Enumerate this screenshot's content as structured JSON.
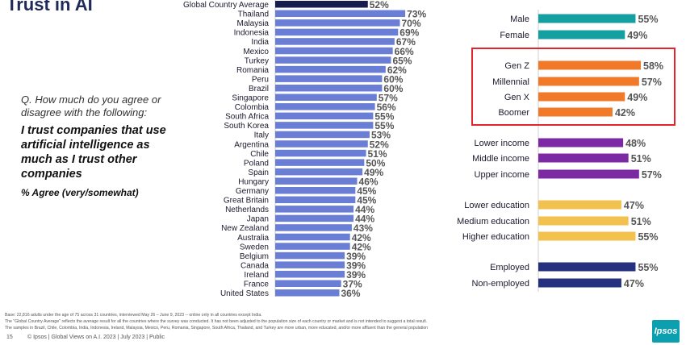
{
  "title": "Trust in AI",
  "question": "Q. How much do you agree or disagree with the following:",
  "statement": "I trust companies that use artificial intelligence as much as I trust other companies",
  "agree_label": "% Agree (very/somewhat)",
  "colors": {
    "country_bar": "#6b7ed6",
    "global_bar": "#161d4e",
    "gender": "#14a0a0",
    "generation": "#f07a2a",
    "income": "#7c2aa3",
    "education": "#f2c14e",
    "employment": "#25307e",
    "highlight_border": "#e0262c"
  },
  "chart_data": [
    {
      "type": "bar",
      "orientation": "horizontal",
      "categories": [
        "Global Country Average",
        "Thailand",
        "Malaysia",
        "Indonesia",
        "India",
        "Mexico",
        "Turkey",
        "Romania",
        "Peru",
        "Brazil",
        "Singapore",
        "Colombia",
        "South Africa",
        "South Korea",
        "Italy",
        "Argentina",
        "Chile",
        "Poland",
        "Spain",
        "Hungary",
        "Germany",
        "Great Britain",
        "Netherlands",
        "Japan",
        "New Zealand",
        "Australia",
        "Sweden",
        "Belgium",
        "Canada",
        "Ireland",
        "France",
        "United States"
      ],
      "values": [
        52,
        73,
        70,
        69,
        67,
        66,
        65,
        62,
        60,
        60,
        57,
        56,
        55,
        55,
        53,
        52,
        51,
        50,
        49,
        46,
        45,
        45,
        44,
        44,
        43,
        42,
        42,
        39,
        39,
        39,
        37,
        36
      ],
      "value_labels": [
        "52%",
        "73%",
        "70%",
        "69%",
        "67%",
        "66%",
        "65%",
        "62%",
        "60%",
        "60%",
        "57%",
        "56%",
        "55%",
        "55%",
        "53%",
        "52%",
        "51%",
        "50%",
        "49%",
        "46%",
        "45%",
        "45%",
        "44%",
        "44%",
        "43%",
        "42%",
        "42%",
        "39%",
        "39%",
        "39%",
        "37%",
        "36%"
      ]
    },
    {
      "type": "bar",
      "orientation": "horizontal",
      "groups": [
        {
          "color_key": "gender",
          "categories": [
            "Male",
            "Female"
          ],
          "values": [
            55,
            49
          ],
          "value_labels": [
            "55%",
            "49%"
          ]
        },
        {
          "color_key": "generation",
          "categories": [
            "Gen Z",
            "Millennial",
            "Gen X",
            "Boomer"
          ],
          "values": [
            58,
            57,
            49,
            42
          ],
          "value_labels": [
            "58%",
            "57%",
            "49%",
            "42%"
          ]
        },
        {
          "color_key": "income",
          "categories": [
            "Lower income",
            "Middle income",
            "Upper income"
          ],
          "values": [
            48,
            51,
            57
          ],
          "value_labels": [
            "48%",
            "51%",
            "57%"
          ]
        },
        {
          "color_key": "education",
          "categories": [
            "Lower education",
            "Medium education",
            "Higher education"
          ],
          "values": [
            47,
            51,
            55
          ],
          "value_labels": [
            "47%",
            "51%",
            "55%"
          ]
        },
        {
          "color_key": "employment",
          "categories": [
            "Employed",
            "Non-employed"
          ],
          "values": [
            55,
            47
          ],
          "value_labels": [
            "55%",
            "47%"
          ]
        }
      ]
    }
  ],
  "notes": [
    "Base: 22,816 adults under the age of 75 across 31 countries, interviewed May 26 – June 9, 2023 -- online only in all countries except India.",
    "The \"Global Country Average\" reflects the average result for all the countries where the survey was conducted. It has not been adjusted to the population size of each country or market and is not intended to suggest a total result.",
    "The samples in Brazil, Chile, Colombia, India, Indonesia, Ireland, Malaysia, Mexico, Peru, Romania, Singapore, South Africa, Thailand, and Turkey are more urban, more educated, and/or more affluent than the general population"
  ],
  "footer": {
    "page": "15",
    "text": "© Ipsos | Global Views on A.I. 2023 | July 2023 | Public"
  },
  "logo_text": "Ipsos"
}
